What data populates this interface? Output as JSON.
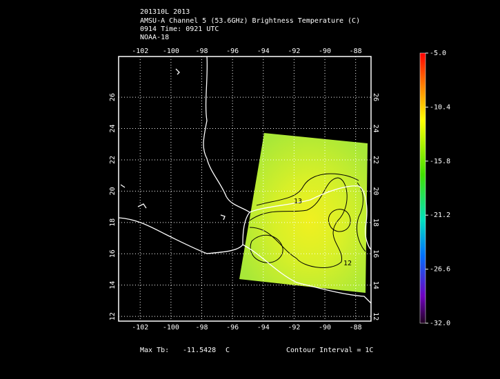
{
  "header": {
    "lines": [
      "201310L 2013",
      "AMSU-A Channel 5 (53.6GHz) Brightness Temperature (C)",
      "0914 Time: 0921 UTC",
      "NOAA-18"
    ]
  },
  "map": {
    "xlim": [
      -103.4,
      -87.0
    ],
    "ylim": [
      11.7,
      28.6
    ],
    "xticks": [
      -102,
      -100,
      -98,
      -96,
      -94,
      -92,
      -90,
      -88
    ],
    "yticks": [
      12,
      14,
      16,
      18,
      20,
      22,
      24,
      26
    ],
    "contour_labels": [
      13,
      12
    ]
  },
  "colorbar": {
    "lim": [
      -32,
      -5
    ],
    "ticks": [
      {
        "value": -5,
        "label": "-5.0"
      },
      {
        "value": -10.4,
        "label": "-10.4"
      },
      {
        "value": -15.8,
        "label": "-15.8"
      },
      {
        "value": -21.2,
        "label": "-21.2"
      },
      {
        "value": -26.6,
        "label": "-26.6"
      },
      {
        "value": -32,
        "label": "-32.0"
      }
    ]
  },
  "footer": {
    "max_label": "Max Tb:",
    "max_value": -11.5428,
    "max_unit": "C",
    "contour_interval": "Contour Interval = 1C"
  }
}
